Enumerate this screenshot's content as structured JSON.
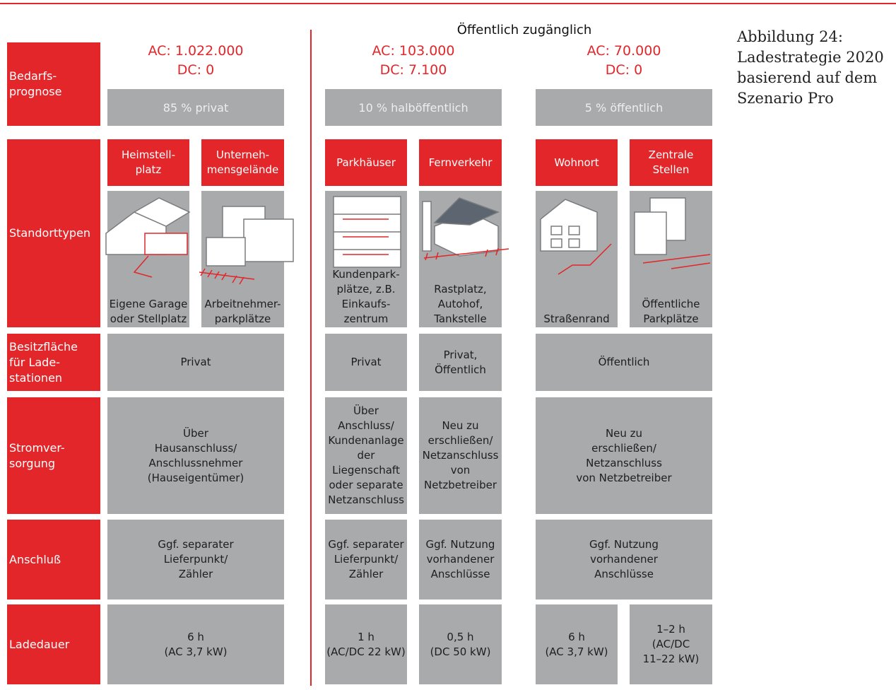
{
  "caption": [
    "Abbildung 24:",
    "Ladestrategie 2020",
    "basierend auf dem",
    "Szenario Pro"
  ],
  "public_label": "Öffentlich zugänglich",
  "row_headers": [
    [
      "Bedarfs-",
      "prognose"
    ],
    [
      "Standorttypen"
    ],
    [
      "Besitzfläche",
      "für Lade-",
      "stationen"
    ],
    [
      "Stromver-",
      "sorgung"
    ],
    [
      "Anschluß"
    ],
    [
      "Ladedauer"
    ]
  ],
  "groups": [
    {
      "demand": [
        "AC: 1.022.000",
        "DC: 0"
      ],
      "share": "85 % privat",
      "locations": [
        {
          "name": [
            "Heimstell-",
            "platz"
          ],
          "description": [
            "Eigene Garage",
            "oder Stellplatz"
          ]
        },
        {
          "name": [
            "Unterneh-",
            "mensgelände"
          ],
          "description": [
            "Arbeitnehmer-",
            "parkplätze"
          ]
        }
      ],
      "ownership": [
        [
          "Privat"
        ]
      ],
      "power": [
        [
          "Über",
          "Hausanschluss/",
          "Anschlussnehmer",
          "(Hauseigentümer)"
        ]
      ],
      "connection": [
        [
          "Ggf. separater",
          "Lieferpunkt/",
          "Zähler"
        ]
      ],
      "duration": [
        [
          "6 h",
          "(AC 3,7 kW)"
        ]
      ]
    },
    {
      "demand": [
        "AC: 103.000",
        "DC: 7.100"
      ],
      "share": "10 % halböffentlich",
      "locations": [
        {
          "name": [
            "Parkhäuser"
          ],
          "description": [
            "Kundenpark-",
            "plätze, z.B.",
            "Einkaufs-",
            "zentrum"
          ]
        },
        {
          "name": [
            "Fernverkehr"
          ],
          "description": [
            "Rastplatz,",
            "Autohof,",
            "Tankstelle"
          ]
        }
      ],
      "ownership": [
        [
          "Privat"
        ],
        [
          "Privat,",
          "Öffentlich"
        ]
      ],
      "power": [
        [
          "Über",
          "Anschluss/",
          "Kundenanlage",
          "der",
          "Liegenschaft",
          "oder separate",
          "Netzanschluss"
        ],
        [
          "Neu zu",
          "erschließen/",
          "Netzanschluss",
          "von",
          "Netzbetreiber"
        ]
      ],
      "connection": [
        [
          "Ggf. separater",
          "Lieferpunkt/",
          "Zähler"
        ],
        [
          "Ggf. Nutzung",
          "vorhandener",
          "Anschlüsse"
        ]
      ],
      "duration": [
        [
          "1 h",
          "(AC/DC 22 kW)"
        ],
        [
          "0,5 h",
          "(DC 50 kW)"
        ]
      ]
    },
    {
      "demand": [
        "AC: 70.000",
        "DC: 0"
      ],
      "share": "5 % öffentlich",
      "locations": [
        {
          "name": [
            "Wohnort"
          ],
          "description": [
            "Straßenrand"
          ]
        },
        {
          "name": [
            "Zentrale",
            "Stellen"
          ],
          "description": [
            "Öffentliche",
            "Parkplätze"
          ]
        }
      ],
      "ownership": [
        [
          "Öffentlich"
        ]
      ],
      "power": [
        [
          "Neu zu",
          "erschließen/",
          "Netzanschluss",
          "von Netzbetreiber"
        ]
      ],
      "connection": [
        [
          "Ggf. Nutzung",
          "vorhandener",
          "Anschlüsse"
        ]
      ],
      "duration": [
        [
          "6 h",
          "(AC 3,7 kW)"
        ],
        [
          "1–2 h",
          "(AC/DC",
          "11–22 kW)"
        ]
      ]
    }
  ]
}
